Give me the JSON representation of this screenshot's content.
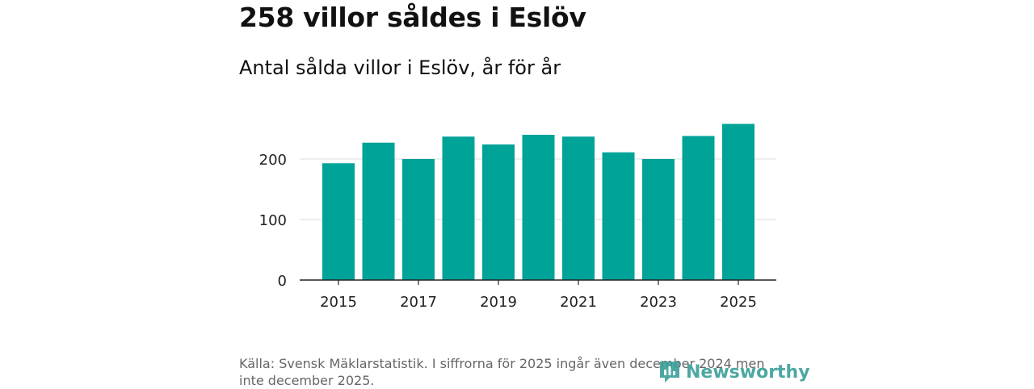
{
  "header": {
    "title": "258 villor såldes i Eslöv",
    "subtitle": "Antal sålda villor i Eslöv, år för år"
  },
  "chart_data": {
    "type": "bar",
    "categories": [
      "2015",
      "2016",
      "2017",
      "2018",
      "2019",
      "2020",
      "2021",
      "2022",
      "2023",
      "2024",
      "2025"
    ],
    "values": [
      193,
      227,
      200,
      237,
      224,
      240,
      237,
      211,
      200,
      238,
      258
    ],
    "x_tick_labels": [
      "2015",
      "2017",
      "2019",
      "2021",
      "2023",
      "2025"
    ],
    "y_ticks": [
      0,
      100,
      200
    ],
    "y_tick_labels": [
      "0",
      "100",
      "200"
    ],
    "ylim": [
      0,
      270
    ],
    "grid": true,
    "bar_color": "#00a398"
  },
  "footer": {
    "source": "Källa: Svensk Mäklarstatistik. I siffrorna för 2025 ingår även december 2024 men inte december 2025.",
    "brand": "Newsworthy"
  }
}
